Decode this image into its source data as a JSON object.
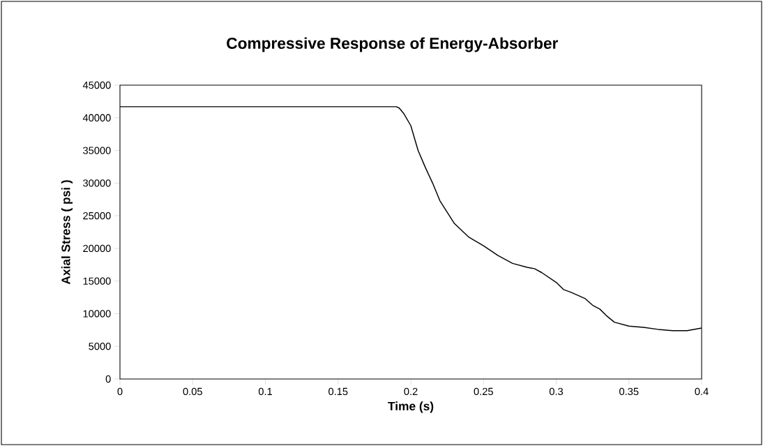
{
  "chart_data": {
    "type": "line",
    "title": "Compressive Response of Energy-Absorber",
    "xlabel": "Time (s)",
    "ylabel": "Axial Stress ( psi )",
    "x": [
      0,
      0.19,
      0.192,
      0.195,
      0.2,
      0.205,
      0.21,
      0.215,
      0.22,
      0.23,
      0.24,
      0.25,
      0.26,
      0.27,
      0.28,
      0.285,
      0.29,
      0.3,
      0.305,
      0.31,
      0.32,
      0.325,
      0.33,
      0.335,
      0.34,
      0.35,
      0.36,
      0.37,
      0.38,
      0.39,
      0.4
    ],
    "series": [
      {
        "color": "#000000",
        "values": [
          41700,
          41700,
          41500,
          40700,
          38800,
          35000,
          32400,
          30000,
          27300,
          23800,
          21700,
          20400,
          18900,
          17700,
          17100,
          16900,
          16300,
          14800,
          13700,
          13300,
          12300,
          11300,
          10700,
          9600,
          8700,
          8100,
          7900,
          7600,
          7400,
          7400,
          7800
        ]
      }
    ],
    "xlim": [
      0,
      0.4
    ],
    "ylim": [
      0,
      45000
    ],
    "xticks": [
      0,
      0.05,
      0.1,
      0.15,
      0.2,
      0.25,
      0.3,
      0.35,
      0.4
    ],
    "yticks": [
      0,
      5000,
      10000,
      15000,
      20000,
      25000,
      30000,
      35000,
      40000,
      45000
    ],
    "grid": false,
    "marker": "none",
    "line_style": "solid"
  }
}
